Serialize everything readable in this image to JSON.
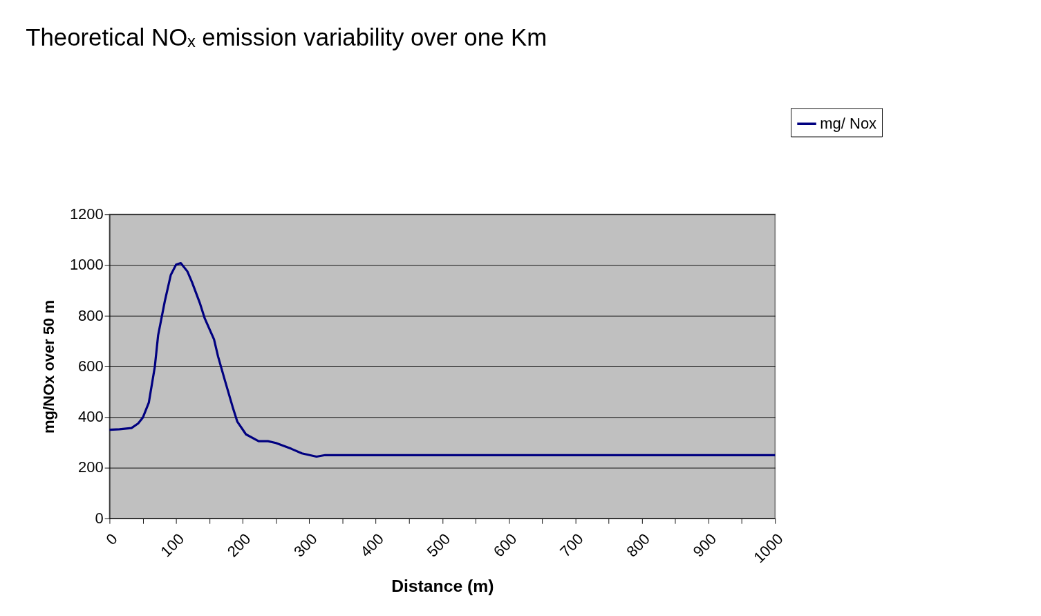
{
  "chart_data": {
    "type": "line",
    "title": "Theoretical NOₓ emission variability over one Km",
    "xlabel": "Distance (m)",
    "ylabel": "mg/NOx over 50 m",
    "x": [
      0,
      15,
      33,
      43,
      50,
      59,
      68,
      73,
      83,
      92,
      100,
      107,
      117,
      124,
      136,
      143,
      157,
      163,
      173,
      185,
      192,
      205,
      224,
      238,
      250,
      273,
      289,
      311,
      324,
      1000
    ],
    "series": [
      {
        "name": "mg/ Nox",
        "color": "#000080",
        "values": [
          350,
          352,
          357,
          375,
          398,
          457,
          598,
          723,
          857,
          961,
          1002,
          1008,
          975,
          932,
          848,
          790,
          707,
          640,
          548,
          440,
          382,
          332,
          305,
          305,
          298,
          275,
          257,
          244,
          250,
          250
        ]
      }
    ],
    "xlim": [
      0,
      1000
    ],
    "ylim": [
      0,
      1200
    ],
    "xticks": [
      0,
      {
        "value": 50,
        "label": null
      },
      100,
      {
        "value": 150,
        "label": null
      },
      200,
      {
        "value": 250,
        "label": null
      },
      300,
      {
        "value": 350,
        "label": null
      },
      400,
      {
        "value": 450,
        "label": null
      },
      500,
      {
        "value": 550,
        "label": null
      },
      600,
      {
        "value": 650,
        "label": null
      },
      700,
      {
        "value": 750,
        "label": null
      },
      800,
      {
        "value": 850,
        "label": null
      },
      900,
      {
        "value": 950,
        "label": null
      },
      1000
    ],
    "yticks": [
      0,
      200,
      400,
      600,
      800,
      1000,
      1200
    ],
    "grid": "y",
    "legend": "top right",
    "marker": "none",
    "line_style": "solid"
  }
}
